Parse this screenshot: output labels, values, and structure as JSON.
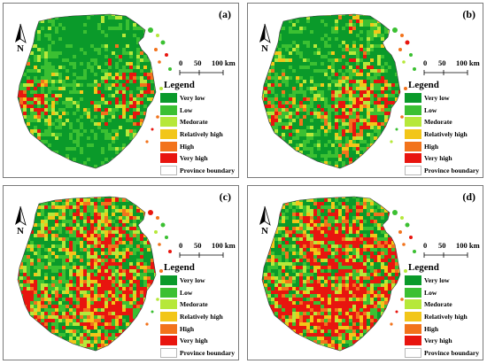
{
  "legend": {
    "title": "Legend",
    "items": [
      {
        "label": "Very low",
        "color": "#0a9a2a"
      },
      {
        "label": "Low",
        "color": "#3bc032"
      },
      {
        "label": "Medorate",
        "color": "#b6e83a"
      },
      {
        "label": "Relatively high",
        "color": "#f2c619"
      },
      {
        "label": "High",
        "color": "#f2731c"
      },
      {
        "label": "Very high",
        "color": "#e8150f"
      },
      {
        "label": "Province boundary",
        "color": "#ffffff"
      }
    ]
  },
  "scale_bar": {
    "ticks": [
      "0",
      "50",
      "100 km"
    ]
  },
  "north_arrow": {
    "letter": "N",
    "icon": "north-arrow-icon"
  },
  "panels": [
    {
      "label": "(a)",
      "mix": [
        0.55,
        0.22,
        0.08,
        0.06,
        0.04,
        0.05
      ]
    },
    {
      "label": "(b)",
      "mix": [
        0.45,
        0.22,
        0.08,
        0.08,
        0.06,
        0.11
      ]
    },
    {
      "label": "(c)",
      "mix": [
        0.28,
        0.2,
        0.08,
        0.1,
        0.08,
        0.26
      ]
    },
    {
      "label": "(d)",
      "mix": [
        0.25,
        0.17,
        0.07,
        0.1,
        0.08,
        0.33
      ]
    }
  ]
}
